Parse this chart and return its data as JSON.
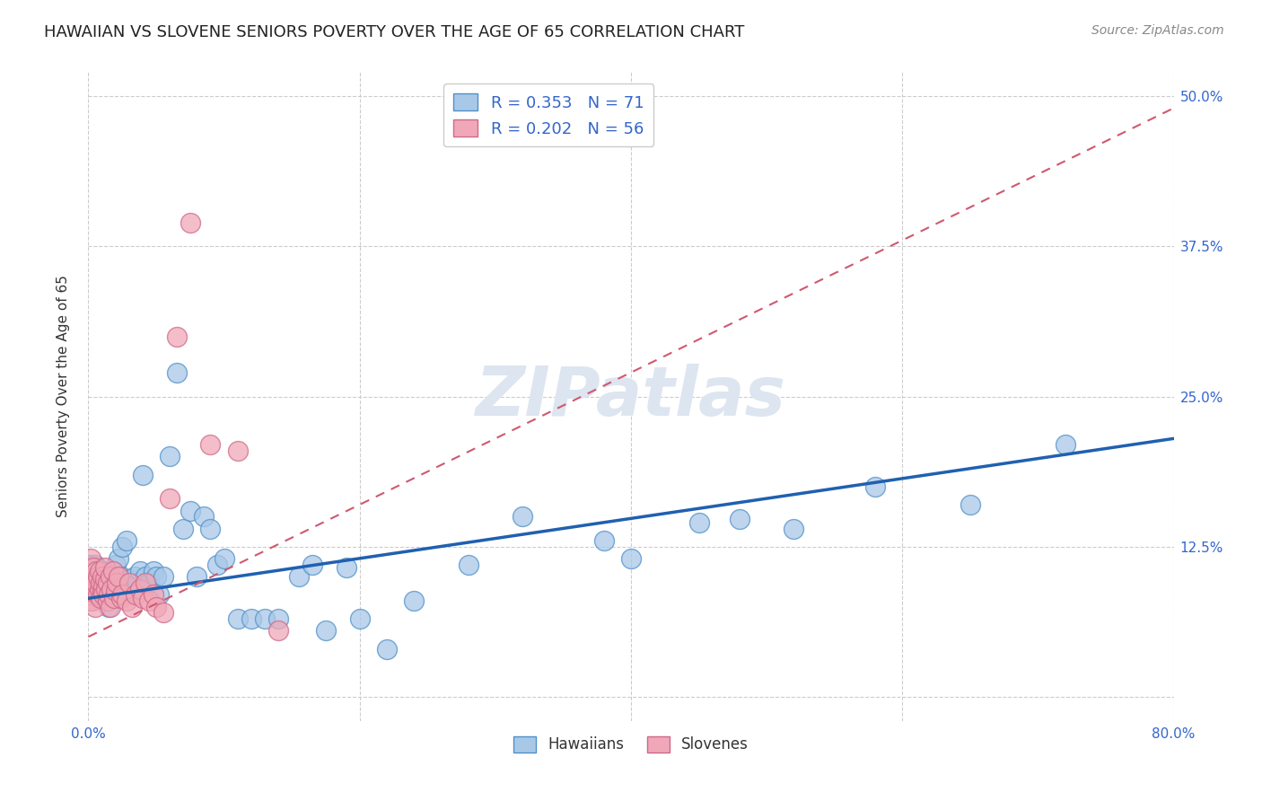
{
  "title": "HAWAIIAN VS SLOVENE SENIORS POVERTY OVER THE AGE OF 65 CORRELATION CHART",
  "source": "Source: ZipAtlas.com",
  "ylabel": "Seniors Poverty Over the Age of 65",
  "xlim": [
    0.0,
    0.8
  ],
  "ylim": [
    -0.02,
    0.52
  ],
  "xticks": [
    0.0,
    0.2,
    0.4,
    0.6,
    0.8
  ],
  "xticklabels": [
    "0.0%",
    "",
    "",
    "",
    "80.0%"
  ],
  "yticks": [
    0.0,
    0.125,
    0.25,
    0.375,
    0.5
  ],
  "yticklabels_right": [
    "",
    "12.5%",
    "25.0%",
    "37.5%",
    "50.0%"
  ],
  "hawaiian_R": 0.353,
  "hawaiian_N": 71,
  "slovene_R": 0.202,
  "slovene_N": 56,
  "hawaiian_color": "#a8c8e8",
  "slovene_color": "#f0a8b8",
  "hawaiian_edge_color": "#5090c8",
  "slovene_edge_color": "#d06888",
  "hawaiian_line_color": "#2060b0",
  "slovene_line_color": "#d05870",
  "grid_color": "#cccccc",
  "watermark": "ZIPatlas",
  "watermark_color": "#dde5f0",
  "hawaiians_x": [
    0.001,
    0.002,
    0.002,
    0.003,
    0.004,
    0.004,
    0.005,
    0.005,
    0.006,
    0.006,
    0.007,
    0.008,
    0.009,
    0.01,
    0.011,
    0.012,
    0.013,
    0.014,
    0.015,
    0.016,
    0.017,
    0.018,
    0.019,
    0.02,
    0.022,
    0.024,
    0.025,
    0.026,
    0.028,
    0.03,
    0.032,
    0.034,
    0.036,
    0.038,
    0.04,
    0.042,
    0.045,
    0.048,
    0.05,
    0.052,
    0.055,
    0.06,
    0.065,
    0.07,
    0.075,
    0.08,
    0.085,
    0.09,
    0.095,
    0.1,
    0.11,
    0.12,
    0.13,
    0.14,
    0.155,
    0.165,
    0.175,
    0.19,
    0.2,
    0.22,
    0.24,
    0.28,
    0.32,
    0.38,
    0.4,
    0.45,
    0.48,
    0.52,
    0.58,
    0.65,
    0.72
  ],
  "hawaiians_y": [
    0.095,
    0.08,
    0.11,
    0.1,
    0.09,
    0.105,
    0.085,
    0.11,
    0.095,
    0.108,
    0.1,
    0.09,
    0.085,
    0.105,
    0.095,
    0.092,
    0.1,
    0.088,
    0.075,
    0.09,
    0.098,
    0.105,
    0.095,
    0.11,
    0.115,
    0.1,
    0.125,
    0.09,
    0.13,
    0.098,
    0.088,
    0.1,
    0.095,
    0.105,
    0.185,
    0.1,
    0.095,
    0.105,
    0.1,
    0.085,
    0.1,
    0.2,
    0.27,
    0.14,
    0.155,
    0.1,
    0.15,
    0.14,
    0.11,
    0.115,
    0.065,
    0.065,
    0.065,
    0.065,
    0.1,
    0.11,
    0.055,
    0.108,
    0.065,
    0.04,
    0.08,
    0.11,
    0.15,
    0.13,
    0.115,
    0.145,
    0.148,
    0.14,
    0.175,
    0.16,
    0.21
  ],
  "slovenes_x": [
    0.001,
    0.001,
    0.002,
    0.002,
    0.003,
    0.003,
    0.004,
    0.004,
    0.005,
    0.005,
    0.005,
    0.006,
    0.006,
    0.007,
    0.007,
    0.008,
    0.008,
    0.009,
    0.009,
    0.01,
    0.01,
    0.011,
    0.011,
    0.012,
    0.012,
    0.013,
    0.014,
    0.014,
    0.015,
    0.016,
    0.016,
    0.017,
    0.018,
    0.019,
    0.02,
    0.021,
    0.022,
    0.024,
    0.025,
    0.028,
    0.03,
    0.032,
    0.035,
    0.038,
    0.04,
    0.042,
    0.045,
    0.048,
    0.05,
    0.055,
    0.06,
    0.065,
    0.075,
    0.09,
    0.11,
    0.14
  ],
  "slovenes_y": [
    0.1,
    0.085,
    0.09,
    0.115,
    0.095,
    0.08,
    0.092,
    0.108,
    0.088,
    0.1,
    0.075,
    0.105,
    0.095,
    0.085,
    0.1,
    0.09,
    0.105,
    0.082,
    0.095,
    0.088,
    0.1,
    0.092,
    0.085,
    0.098,
    0.108,
    0.09,
    0.08,
    0.095,
    0.085,
    0.1,
    0.075,
    0.09,
    0.105,
    0.082,
    0.088,
    0.095,
    0.1,
    0.082,
    0.085,
    0.08,
    0.095,
    0.075,
    0.085,
    0.09,
    0.082,
    0.095,
    0.08,
    0.085,
    0.075,
    0.07,
    0.165,
    0.3,
    0.395,
    0.21,
    0.205,
    0.055
  ],
  "hawaiian_trend_x": [
    0.0,
    0.8
  ],
  "hawaiian_trend_y": [
    0.082,
    0.215
  ],
  "slovene_trend_x": [
    0.0,
    0.8
  ],
  "slovene_trend_y": [
    0.05,
    0.49
  ],
  "background_color": "#ffffff",
  "title_fontsize": 13,
  "axis_label_fontsize": 11,
  "tick_fontsize": 11,
  "source_fontsize": 10
}
